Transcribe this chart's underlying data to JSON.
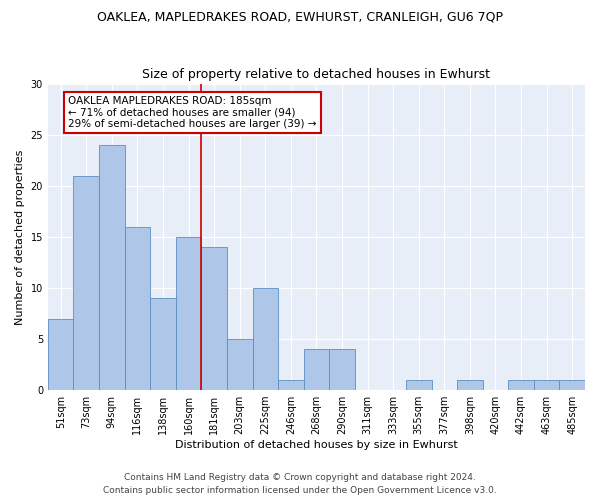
{
  "title": "OAKLEA, MAPLEDRAKES ROAD, EWHURST, CRANLEIGH, GU6 7QP",
  "subtitle": "Size of property relative to detached houses in Ewhurst",
  "xlabel": "Distribution of detached houses by size in Ewhurst",
  "ylabel": "Number of detached properties",
  "categories": [
    "51sqm",
    "73sqm",
    "94sqm",
    "116sqm",
    "138sqm",
    "160sqm",
    "181sqm",
    "203sqm",
    "225sqm",
    "246sqm",
    "268sqm",
    "290sqm",
    "311sqm",
    "333sqm",
    "355sqm",
    "377sqm",
    "398sqm",
    "420sqm",
    "442sqm",
    "463sqm",
    "485sqm"
  ],
  "values": [
    7,
    21,
    24,
    16,
    9,
    15,
    14,
    5,
    10,
    1,
    4,
    4,
    0,
    0,
    1,
    0,
    1,
    0,
    1,
    1,
    1
  ],
  "bar_color": "#aec6e8",
  "bar_edge_color": "#5a8fc0",
  "annotation_text": "OAKLEA MAPLEDRAKES ROAD: 185sqm\n← 71% of detached houses are smaller (94)\n29% of semi-detached houses are larger (39) →",
  "annotation_box_color": "#ffffff",
  "annotation_box_edge_color": "#cc0000",
  "highlight_line_color": "#cc0000",
  "ylim": [
    0,
    30
  ],
  "yticks": [
    0,
    5,
    10,
    15,
    20,
    25,
    30
  ],
  "background_color": "#e8eef8",
  "footer_line1": "Contains HM Land Registry data © Crown copyright and database right 2024.",
  "footer_line2": "Contains public sector information licensed under the Open Government Licence v3.0.",
  "title_fontsize": 9,
  "subtitle_fontsize": 9,
  "axis_label_fontsize": 8,
  "tick_fontsize": 7,
  "annotation_fontsize": 7.5,
  "footer_fontsize": 6.5
}
